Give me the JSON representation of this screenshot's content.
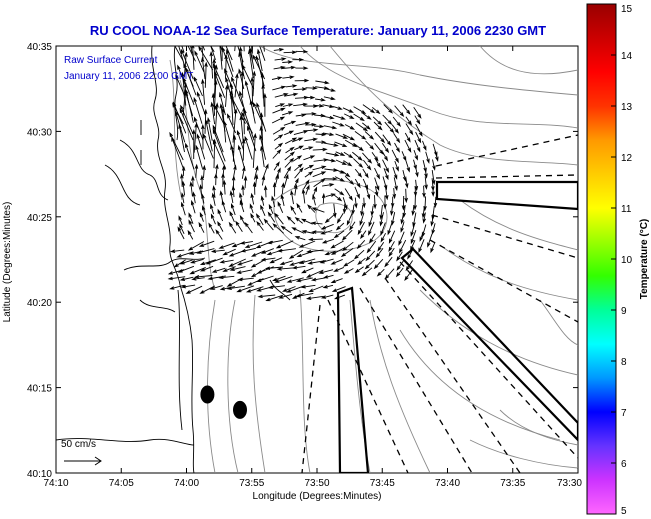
{
  "title": "RU COOL  NOAA-12  Sea Surface Temperature:  January 11, 2006 2230 GMT",
  "annotation": {
    "line1": "Raw Surface Current",
    "line2": "January 11, 2006 22:00 GMT"
  },
  "scale_label": "50 cm/s",
  "axes": {
    "xlabel": "Longitude (Degrees:Minutes)",
    "ylabel": "Latitude (Degrees:Minutes)",
    "xticks": [
      "74:10",
      "74:05",
      "74:00",
      "73:55",
      "73:50",
      "73:45",
      "73:40",
      "73:35",
      "73:30"
    ],
    "yticks": [
      "40:35",
      "40:30",
      "40:25",
      "40:20",
      "40:15",
      "40:10"
    ]
  },
  "colorbar": {
    "label": "Temperature (°C)",
    "ticks": [
      "15",
      "14",
      "13",
      "12",
      "11",
      "10",
      "9",
      "8",
      "7",
      "6",
      "5"
    ],
    "range": [
      5,
      15
    ],
    "colors": [
      "#ff66ff",
      "#cc33ff",
      "#6633ff",
      "#0000ff",
      "#0099ff",
      "#00ffff",
      "#00ff99",
      "#33ff00",
      "#99ff00",
      "#ffff00",
      "#ffcc00",
      "#ff9900",
      "#ff3300",
      "#ff0000",
      "#cc0000",
      "#990000"
    ]
  },
  "map": {
    "lon_range": [
      -74.1667,
      -73.5
    ],
    "lat_range": [
      40.1667,
      40.5833
    ],
    "markers": [
      {
        "lon": -73.9733,
        "lat": 40.2433
      },
      {
        "lon": -73.9317,
        "lat": 40.2283
      }
    ]
  }
}
